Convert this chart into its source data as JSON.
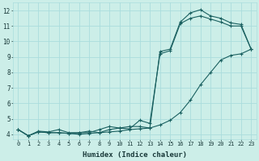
{
  "xlabel": "Humidex (Indice chaleur)",
  "bg_color": "#cceee8",
  "grid_color": "#aadddd",
  "line_color": "#1a6060",
  "xlim": [
    -0.5,
    23.5
  ],
  "ylim": [
    3.7,
    12.5
  ],
  "xticks": [
    0,
    1,
    2,
    3,
    4,
    5,
    6,
    7,
    8,
    9,
    10,
    11,
    12,
    13,
    14,
    15,
    16,
    17,
    18,
    19,
    20,
    21,
    22,
    23
  ],
  "yticks": [
    4,
    5,
    6,
    7,
    8,
    9,
    10,
    11,
    12
  ],
  "line1_x": [
    0,
    1,
    2,
    3,
    4,
    5,
    6,
    7,
    8,
    9,
    10,
    11,
    12,
    13,
    14,
    15,
    16,
    17,
    18,
    19,
    20,
    21,
    22,
    23
  ],
  "line1_y": [
    4.3,
    3.9,
    4.15,
    4.1,
    4.1,
    4.05,
    4.0,
    4.05,
    4.1,
    4.15,
    4.2,
    4.3,
    4.35,
    4.4,
    4.6,
    4.9,
    5.4,
    6.2,
    7.2,
    8.0,
    8.8,
    9.1,
    9.2,
    9.5
  ],
  "line2_x": [
    0,
    1,
    2,
    3,
    4,
    5,
    6,
    7,
    8,
    9,
    10,
    11,
    12,
    13,
    14,
    15,
    16,
    17,
    18,
    19,
    20,
    21,
    22,
    23
  ],
  "line2_y": [
    4.3,
    3.9,
    4.15,
    4.1,
    4.1,
    4.05,
    4.1,
    4.1,
    4.3,
    4.5,
    4.4,
    4.35,
    4.9,
    4.7,
    9.2,
    9.4,
    11.15,
    11.5,
    11.65,
    11.45,
    11.25,
    11.0,
    11.0,
    9.5
  ],
  "line3_x": [
    0,
    1,
    2,
    3,
    4,
    5,
    6,
    7,
    8,
    9,
    10,
    11,
    12,
    13,
    14,
    15,
    16,
    17,
    18,
    19,
    20,
    21,
    22,
    23
  ],
  "line3_y": [
    4.3,
    3.9,
    4.2,
    4.15,
    4.3,
    4.1,
    4.1,
    4.2,
    4.1,
    4.3,
    4.4,
    4.5,
    4.5,
    4.4,
    9.35,
    9.5,
    11.25,
    11.85,
    12.05,
    11.65,
    11.5,
    11.2,
    11.1,
    9.5
  ]
}
